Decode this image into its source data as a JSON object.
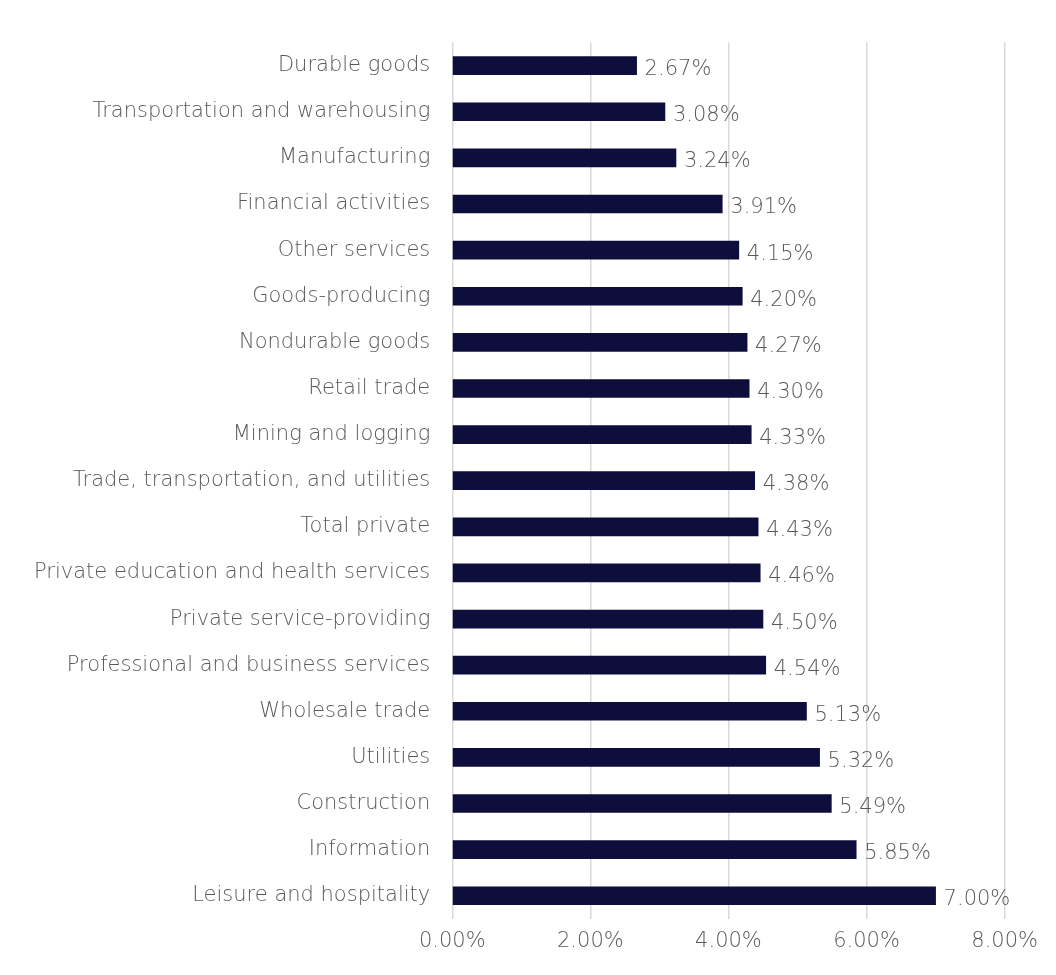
{
  "chart_data": {
    "type": "bar",
    "orientation": "horizontal",
    "categories": [
      "Durable goods",
      "Transportation and warehousing",
      "Manufacturing",
      "Financial activities",
      "Other services",
      "Goods-producing",
      "Nondurable goods",
      "Retail trade",
      "Mining and logging",
      "Trade, transportation, and utilities",
      "Total private",
      "Private education and health services",
      "Private service-providing",
      "Professional and business services",
      "Wholesale trade",
      "Utilities",
      "Construction",
      "Information",
      "Leisure and hospitality"
    ],
    "values": [
      2.67,
      3.08,
      3.24,
      3.91,
      4.15,
      4.2,
      4.27,
      4.3,
      4.33,
      4.38,
      4.43,
      4.46,
      4.5,
      4.54,
      5.13,
      5.32,
      5.49,
      5.85,
      7.0
    ],
    "value_labels": [
      "2.67%",
      "3.08%",
      "3.24%",
      "3.91%",
      "4.15%",
      "4.20%",
      "4.27%",
      "4.30%",
      "4.33%",
      "4.38%",
      "4.43%",
      "4.46%",
      "4.50%",
      "4.54%",
      "5.13%",
      "5.32%",
      "5.49%",
      "5.85%",
      "7.00%"
    ],
    "color": "#0e0e3c",
    "xlim": [
      0,
      8
    ],
    "xticks": [
      {
        "value": 0,
        "label": "0.00%"
      },
      {
        "value": 2,
        "label": "2.00%"
      },
      {
        "value": 4,
        "label": "4.00%"
      },
      {
        "value": 6,
        "label": "6.00%"
      },
      {
        "value": 8,
        "label": "8.00%"
      }
    ],
    "grid": "x",
    "legend": false
  }
}
